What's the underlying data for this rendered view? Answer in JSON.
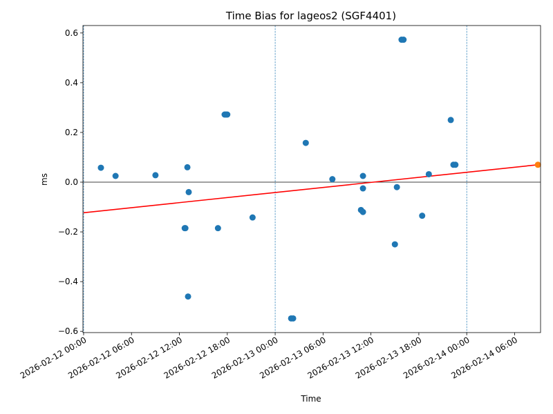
{
  "chart_data": {
    "type": "scatter",
    "title": "Time Bias for lageos2 (SGF4401)",
    "xlabel": "Time",
    "ylabel": "ms",
    "x_ticks": [
      {
        "value": "2026-02-12 00:00",
        "label": "2026-02-12 00:00"
      },
      {
        "value": "2026-02-12 06:00",
        "label": "2026-02-12 06:00"
      },
      {
        "value": "2026-02-12 12:00",
        "label": "2026-02-12 12:00"
      },
      {
        "value": "2026-02-12 18:00",
        "label": "2026-02-12 18:00"
      },
      {
        "value": "2026-02-13 00:00",
        "label": "2026-02-13 00:00"
      },
      {
        "value": "2026-02-13 06:00",
        "label": "2026-02-13 06:00"
      },
      {
        "value": "2026-02-13 12:00",
        "label": "2026-02-13 12:00"
      },
      {
        "value": "2026-02-13 18:00",
        "label": "2026-02-13 18:00"
      },
      {
        "value": "2026-02-14 00:00",
        "label": "2026-02-14 00:00"
      },
      {
        "value": "2026-02-14 06:00",
        "label": "2026-02-14 06:00"
      }
    ],
    "y_ticks": [
      {
        "value": -0.6,
        "label": "−0.6"
      },
      {
        "value": -0.4,
        "label": "−0.4"
      },
      {
        "value": -0.2,
        "label": "−0.2"
      },
      {
        "value": 0.0,
        "label": "0.0"
      },
      {
        "value": 0.2,
        "label": "0.2"
      },
      {
        "value": 0.4,
        "label": "0.4"
      },
      {
        "value": 0.6,
        "label": "0.6"
      }
    ],
    "xlim": [
      "2026-02-11 23:55",
      "2026-02-14 09:15"
    ],
    "ylim": [
      -0.605,
      0.63
    ],
    "day_boundaries": [
      "2026-02-12 00:00",
      "2026-02-13 00:00",
      "2026-02-14 00:00"
    ],
    "zero_line": 0,
    "series": [
      {
        "color": "#1f77b4",
        "points": [
          {
            "x": "2026-02-12 02:10",
            "y": 0.058
          },
          {
            "x": "2026-02-12 04:00",
            "y": 0.025
          },
          {
            "x": "2026-02-12 09:00",
            "y": 0.028
          },
          {
            "x": "2026-02-12 12:40",
            "y": -0.185
          },
          {
            "x": "2026-02-12 12:45",
            "y": -0.185
          },
          {
            "x": "2026-02-12 13:00",
            "y": 0.06
          },
          {
            "x": "2026-02-12 13:05",
            "y": -0.46
          },
          {
            "x": "2026-02-12 13:10",
            "y": -0.04
          },
          {
            "x": "2026-02-12 16:50",
            "y": -0.185
          },
          {
            "x": "2026-02-12 17:40",
            "y": 0.272
          },
          {
            "x": "2026-02-12 17:50",
            "y": 0.272
          },
          {
            "x": "2026-02-12 18:00",
            "y": 0.272
          },
          {
            "x": "2026-02-12 21:10",
            "y": -0.142
          },
          {
            "x": "2026-02-13 02:00",
            "y": -0.548
          },
          {
            "x": "2026-02-13 02:15",
            "y": -0.548
          },
          {
            "x": "2026-02-13 03:50",
            "y": 0.158
          },
          {
            "x": "2026-02-13 07:10",
            "y": 0.012
          },
          {
            "x": "2026-02-13 10:45",
            "y": -0.112
          },
          {
            "x": "2026-02-13 11:00",
            "y": -0.12
          },
          {
            "x": "2026-02-13 11:00",
            "y": 0.025
          },
          {
            "x": "2026-02-13 11:00",
            "y": -0.025
          },
          {
            "x": "2026-02-13 15:00",
            "y": -0.25
          },
          {
            "x": "2026-02-13 15:15",
            "y": -0.02
          },
          {
            "x": "2026-02-13 15:50",
            "y": 0.573
          },
          {
            "x": "2026-02-13 16:05",
            "y": 0.573
          },
          {
            "x": "2026-02-13 18:25",
            "y": -0.135
          },
          {
            "x": "2026-02-13 19:15",
            "y": 0.032
          },
          {
            "x": "2026-02-13 22:00",
            "y": 0.25
          },
          {
            "x": "2026-02-13 22:20",
            "y": 0.07
          },
          {
            "x": "2026-02-13 22:35",
            "y": 0.07
          }
        ]
      },
      {
        "color": "#ff7f0e",
        "points": [
          {
            "x": "2026-02-14 08:55",
            "y": 0.07
          }
        ]
      }
    ],
    "trend_line": {
      "color": "#ff0000",
      "points": [
        {
          "x": "2026-02-12 00:00",
          "y": -0.123
        },
        {
          "x": "2026-02-14 08:55",
          "y": 0.07
        }
      ]
    }
  }
}
